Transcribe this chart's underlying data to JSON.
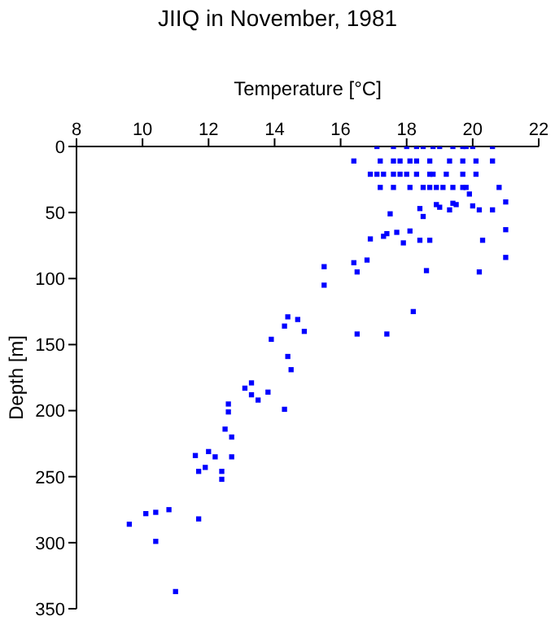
{
  "chart_data": {
    "type": "scatter",
    "title": "JIIQ in November, 1981",
    "xlabel": "Temperature [°C]",
    "ylabel": "Depth [m]",
    "xlim": [
      8,
      22
    ],
    "xticks": [
      8,
      10,
      12,
      14,
      16,
      18,
      20,
      22
    ],
    "ylim": [
      350,
      0
    ],
    "yticks": [
      0,
      50,
      100,
      150,
      200,
      250,
      300,
      350
    ],
    "grid": false,
    "legend": false,
    "marker": "square",
    "series": [
      {
        "color": "#0000ff",
        "x": [
          17.1,
          17.6,
          18.0,
          18.3,
          18.5,
          18.8,
          19.0,
          19.4,
          19.7,
          19.8,
          20.0,
          20.6,
          16.4,
          17.2,
          17.6,
          17.8,
          18.1,
          18.3,
          18.7,
          19.3,
          19.7,
          20.1,
          20.6,
          16.9,
          17.1,
          17.3,
          17.6,
          17.8,
          18.0,
          18.3,
          18.7,
          18.8,
          19.2,
          19.7,
          20.1,
          17.2,
          17.6,
          18.1,
          18.5,
          18.7,
          18.9,
          19.1,
          19.4,
          19.7,
          19.8,
          20.8,
          19.9,
          21.0,
          18.9,
          19.0,
          19.4,
          19.5,
          20.0,
          20.2,
          20.6,
          18.4,
          19.3,
          17.5,
          18.5,
          21.0,
          18.1,
          17.7,
          17.4,
          17.3,
          16.9,
          18.4,
          18.7,
          20.3,
          17.9,
          21.0,
          16.4,
          16.8,
          16.5,
          18.6,
          20.2,
          18.2,
          15.5,
          15.5,
          14.4,
          14.7,
          14.3,
          14.9,
          13.9,
          16.5,
          17.4,
          14.4,
          14.5,
          13.3,
          13.1,
          13.3,
          13.5,
          13.8,
          14.3,
          12.6,
          12.6,
          12.5,
          12.7,
          11.6,
          12.0,
          12.2,
          12.7,
          11.9,
          11.7,
          12.4,
          12.4,
          10.8,
          10.4,
          10.1,
          9.6,
          11.7,
          10.4,
          11.0
        ],
        "values": [
          0,
          0,
          0,
          0,
          0,
          0,
          0,
          0,
          0,
          0,
          0,
          0,
          11,
          11,
          11,
          11,
          11,
          11,
          11,
          11,
          11,
          11,
          11,
          21,
          21,
          21,
          21,
          21,
          21,
          21,
          21,
          21,
          21,
          21,
          21,
          31,
          31,
          31,
          31,
          31,
          31,
          31,
          31,
          31,
          31,
          31,
          36,
          42,
          44,
          46,
          43,
          44,
          45,
          48,
          48,
          47,
          48,
          51,
          53,
          63,
          64,
          65,
          66,
          68,
          70,
          71,
          71,
          71,
          73,
          84,
          88,
          86,
          95,
          94,
          95,
          125,
          91,
          105,
          129,
          131,
          136,
          140,
          146,
          142,
          142,
          159,
          169,
          179,
          183,
          188,
          192,
          186,
          199,
          195,
          201,
          214,
          220,
          234,
          231,
          235,
          235,
          243,
          246,
          246,
          252,
          275,
          277,
          278,
          286,
          282,
          299,
          337
        ]
      }
    ]
  }
}
